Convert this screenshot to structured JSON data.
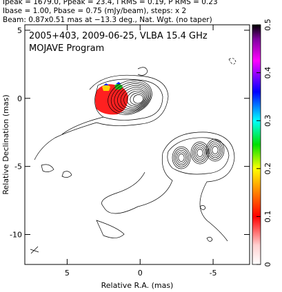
{
  "header_lines": [
    "Ipeak = 1679.0, Ppeak = 23.4, I RMS = 0.19, P RMS = 0.23",
    "Ibase = 1.00, Pbase = 0.75 (mJy/beam), steps: x 2",
    "Beam: 0.87x0.51 mas at −13.3 deg., Nat. Wgt. (no taper)"
  ],
  "chart_data": {
    "type": "contour",
    "title": "2005+403, 2009-06-25, VLBA 15.4 GHz",
    "subtitle": "MOJAVE Program",
    "xlabel": "Relative R.A. (mas)",
    "ylabel": "Relative Declination (mas)",
    "xlim": [
      7.9,
      -7.5
    ],
    "xticks": [
      5,
      0,
      -5
    ],
    "ylim": [
      -12.2,
      5.4
    ],
    "yticks": [
      5,
      0,
      -5,
      -10
    ],
    "colorbar": {
      "lim": [
        0,
        0.5
      ],
      "ticks": [
        0,
        0.1,
        0.2,
        0.3,
        0.4,
        0.5
      ]
    }
  }
}
